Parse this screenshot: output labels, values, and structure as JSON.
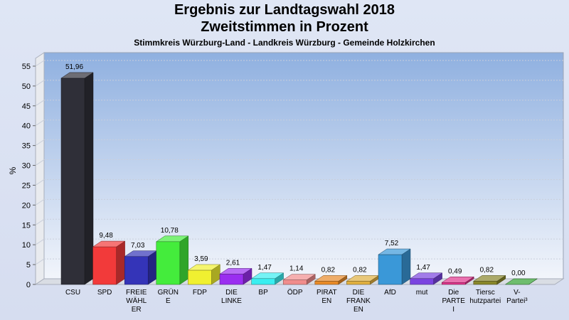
{
  "chart_data": {
    "type": "bar",
    "title": "Ergebnis zur Landtagswahl 2018",
    "subtitle": "Zweitstimmen in Prozent",
    "caption": "Stimmkreis Würzburg-Land - Landkreis Würzburg - Gemeinde Holzkirchen",
    "ylabel": "%",
    "ylim": [
      0,
      55
    ],
    "yticks": [
      0,
      5,
      10,
      15,
      20,
      25,
      30,
      35,
      40,
      45,
      50,
      55
    ],
    "grid": true,
    "categories": [
      [
        "CSU"
      ],
      [
        "SPD"
      ],
      [
        "FREIE",
        "WÄHL",
        "ER"
      ],
      [
        "GRÜN",
        "E"
      ],
      [
        "FDP"
      ],
      [
        "DIE",
        "LINKE"
      ],
      [
        "BP"
      ],
      [
        "ÖDP"
      ],
      [
        "PIRAT",
        "EN"
      ],
      [
        "DIE",
        "FRANK",
        "EN"
      ],
      [
        "AfD"
      ],
      [
        "mut"
      ],
      [
        "Die",
        "PARTE",
        "I"
      ],
      [
        "Tiersc",
        "hutzpartei"
      ],
      [
        "V-",
        "Partei³"
      ]
    ],
    "values": [
      51.96,
      9.48,
      7.03,
      10.78,
      3.59,
      2.61,
      1.47,
      1.14,
      0.82,
      0.82,
      7.52,
      1.47,
      0.49,
      0.82,
      0.0
    ],
    "value_labels": [
      "51,96",
      "9,48",
      "7,03",
      "10,78",
      "3,59",
      "2,61",
      "1,47",
      "1,14",
      "0,82",
      "0,82",
      "7,52",
      "1,47",
      "0,49",
      "0,82",
      "0,00"
    ],
    "colors": [
      "#2f2f38",
      "#f23a3a",
      "#3434b8",
      "#44ec3c",
      "#f0f030",
      "#9a2ef0",
      "#3aeef0",
      "#f08c8c",
      "#e88a28",
      "#e0b040",
      "#3a98d8",
      "#7a44e0",
      "#e0348c",
      "#88862a",
      "#30a030"
    ]
  }
}
